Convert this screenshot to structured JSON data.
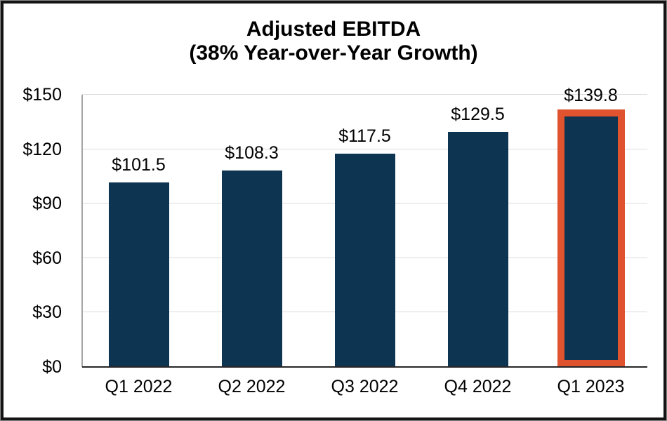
{
  "chart_data": {
    "type": "bar",
    "title": "Adjusted EBITDA",
    "subtitle": "(38% Year-over-Year Growth)",
    "categories": [
      "Q1 2022",
      "Q2 2022",
      "Q3 2022",
      "Q4 2022",
      "Q1 2023"
    ],
    "values": [
      101.5,
      108.3,
      117.5,
      129.5,
      139.8
    ],
    "data_labels": [
      "$101.5",
      "$108.3",
      "$117.5",
      "$129.5",
      "$139.8"
    ],
    "highlighted_index": 4,
    "highlight_style": "orange-outline",
    "xlabel": "",
    "ylabel": "",
    "ylim": [
      0,
      150
    ],
    "y_ticks": [
      {
        "value": 0,
        "label": "$0"
      },
      {
        "value": 30,
        "label": "$30"
      },
      {
        "value": 60,
        "label": "$60"
      },
      {
        "value": 90,
        "label": "$90"
      },
      {
        "value": 120,
        "label": "$120"
      },
      {
        "value": 150,
        "label": "$150"
      }
    ],
    "grid": true,
    "legend": false,
    "colors": {
      "bar": "#0d3450",
      "highlight_outline": "#e0532f",
      "gridline": "#dcdcdc",
      "y_axis_line": "#a6a6a6",
      "baseline": "#262626",
      "text": "#000000",
      "frame_outer": "#8c8c8c",
      "frame_inner": "#141414",
      "background": "#ffffff"
    }
  }
}
